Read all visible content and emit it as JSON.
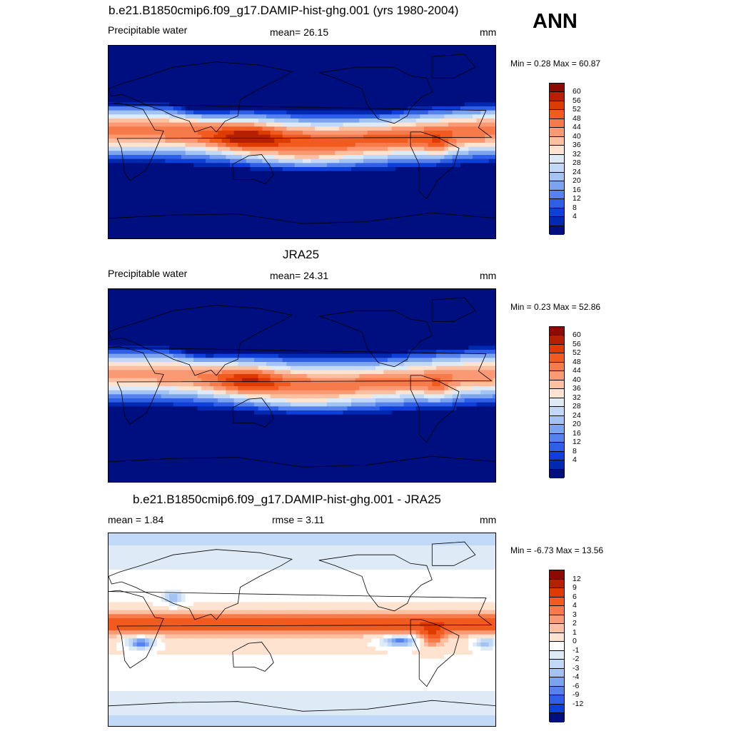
{
  "season": "ANN",
  "panels": [
    {
      "title": "b.e21.B1850cmip6.f09_g17.DAMIP-hist-ghg.001 (yrs 1980-2004)",
      "left_label": "Precipitable water",
      "center_label": "mean=  26.15",
      "units": "mm",
      "minmax": "Min =   0.28 Max =  60.87",
      "field": "model",
      "colorbar": {
        "colors": [
          "#8c0a00",
          "#b52000",
          "#dd3b00",
          "#f25b20",
          "#f77a4b",
          "#f99a75",
          "#fbbfa2",
          "#fde3d0",
          "#deebf7",
          "#c1d9f7",
          "#a3c3f5",
          "#7ba3f0",
          "#5582ec",
          "#2f5fe6",
          "#0f3fd9",
          "#0028b0",
          "#000f80"
        ],
        "labels": [
          "60",
          "56",
          "52",
          "48",
          "44",
          "40",
          "36",
          "32",
          "28",
          "24",
          "20",
          "16",
          "12",
          "8",
          "4"
        ]
      }
    },
    {
      "title": "JRA25",
      "left_label": "Precipitable water",
      "center_label": "mean=  24.31",
      "units": "mm",
      "minmax": "Min =   0.23 Max =  52.86",
      "field": "obs",
      "colorbar": {
        "colors": [
          "#8c0a00",
          "#b52000",
          "#dd3b00",
          "#f25b20",
          "#f77a4b",
          "#f99a75",
          "#fbbfa2",
          "#fde3d0",
          "#deebf7",
          "#c1d9f7",
          "#a3c3f5",
          "#7ba3f0",
          "#5582ec",
          "#2f5fe6",
          "#0f3fd9",
          "#0028b0",
          "#000f80"
        ],
        "labels": [
          "60",
          "56",
          "52",
          "48",
          "44",
          "40",
          "36",
          "32",
          "28",
          "24",
          "20",
          "16",
          "12",
          "8",
          "4"
        ]
      }
    },
    {
      "title": "b.e21.B1850cmip6.f09_g17.DAMIP-hist-ghg.001 - JRA25",
      "left_label": "mean =   1.84",
      "center_label": "rmse =   3.11",
      "units": "mm",
      "minmax": "Min =  -6.73 Max =  13.56",
      "field": "diff",
      "colorbar": {
        "colors": [
          "#8c0a00",
          "#b52000",
          "#dd3b00",
          "#f25b20",
          "#f77a4b",
          "#f99a75",
          "#fbbfa2",
          "#fde3d0",
          "#ffffff",
          "#deebf7",
          "#c1d9f7",
          "#a3c3f5",
          "#7ba3f0",
          "#5582ec",
          "#2f5fe6",
          "#0f3fd9",
          "#000f80"
        ],
        "labels": [
          "12",
          "9",
          "6",
          "4",
          "3",
          "2",
          "1",
          "0",
          "-1",
          "-2",
          "-3",
          "-4",
          "-6",
          "-9",
          "-12"
        ]
      }
    }
  ]
}
